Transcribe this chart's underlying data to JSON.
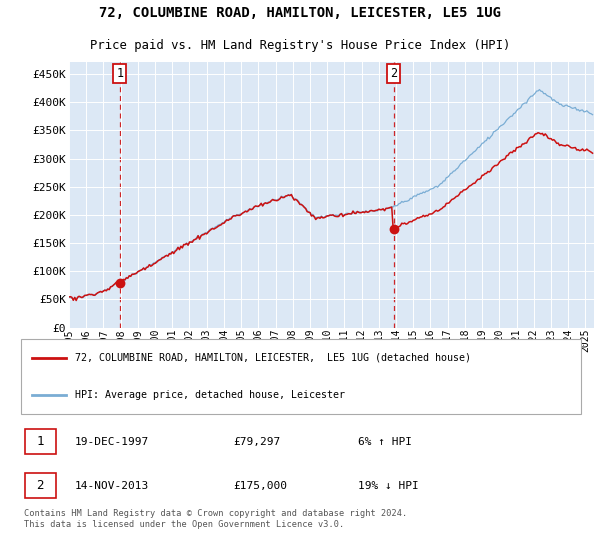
{
  "title_line1": "72, COLUMBINE ROAD, HAMILTON, LEICESTER, LE5 1UG",
  "title_line2": "Price paid vs. HM Land Registry's House Price Index (HPI)",
  "legend_entry1": "72, COLUMBINE ROAD, HAMILTON, LEICESTER,  LE5 1UG (detached house)",
  "legend_entry2": "HPI: Average price, detached house, Leicester",
  "note1_date": "19-DEC-1997",
  "note1_price": "£79,297",
  "note1_hpi": "6% ↑ HPI",
  "note2_date": "14-NOV-2013",
  "note2_price": "£175,000",
  "note2_hpi": "19% ↓ HPI",
  "footer": "Contains HM Land Registry data © Crown copyright and database right 2024.\nThis data is licensed under the Open Government Licence v3.0.",
  "sale1_year": 1997.96,
  "sale1_price": 79297,
  "sale2_year": 2013.87,
  "sale2_price": 175000,
  "hpi_color": "#7aadd4",
  "sale_color": "#cc1111",
  "vline_color": "#cc1111",
  "plot_bg_color": "#dce8f5",
  "ytick_labels": [
    "£0",
    "£50K",
    "£100K",
    "£150K",
    "£200K",
    "£250K",
    "£300K",
    "£350K",
    "£400K",
    "£450K"
  ],
  "ytick_values": [
    0,
    50000,
    100000,
    150000,
    200000,
    250000,
    300000,
    350000,
    400000,
    450000
  ],
  "xmin": 1995.0,
  "xmax": 2025.5,
  "ymin": 0,
  "ymax": 472000
}
